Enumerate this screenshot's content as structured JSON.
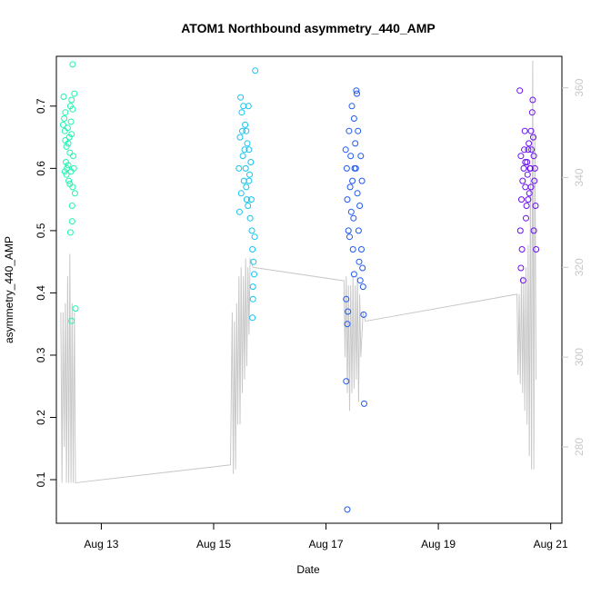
{
  "chart_data": {
    "type": "scatter",
    "title": "ATOM1 Northbound asymmetry_440_AMP",
    "xlabel": "Date",
    "ylabel": "asymmetry_440_AMP",
    "x_range_days": [
      12.2,
      21.2
    ],
    "y_range": [
      0.03,
      0.78
    ],
    "y2_range": [
      263,
      367
    ],
    "x_ticks": [
      {
        "value": 13,
        "label": "Aug 13"
      },
      {
        "value": 15,
        "label": "Aug 15"
      },
      {
        "value": 17,
        "label": "Aug 17"
      },
      {
        "value": 19,
        "label": "Aug 19"
      },
      {
        "value": 21,
        "label": "Aug 21"
      }
    ],
    "y_ticks": [
      {
        "value": 0.1,
        "label": "0.1"
      },
      {
        "value": 0.2,
        "label": "0.2"
      },
      {
        "value": 0.3,
        "label": "0.3"
      },
      {
        "value": 0.4,
        "label": "0.4"
      },
      {
        "value": 0.5,
        "label": "0.5"
      },
      {
        "value": 0.6,
        "label": "0.6"
      },
      {
        "value": 0.7,
        "label": "0.7"
      }
    ],
    "y2_ticks": [
      {
        "value": 280,
        "label": "280"
      },
      {
        "value": 300,
        "label": "300"
      },
      {
        "value": 320,
        "label": "320"
      },
      {
        "value": 340,
        "label": "340"
      },
      {
        "value": 360,
        "label": "360"
      }
    ],
    "grid": false,
    "points": [
      {
        "x": 12.32,
        "y": 0.67,
        "color": "#1ef5b0"
      },
      {
        "x": 12.33,
        "y": 0.715,
        "color": "#1ef5b0"
      },
      {
        "x": 12.34,
        "y": 0.68,
        "color": "#1ef5b0"
      },
      {
        "x": 12.35,
        "y": 0.66,
        "color": "#1ef5b0"
      },
      {
        "x": 12.36,
        "y": 0.645,
        "color": "#1ef5b0"
      },
      {
        "x": 12.37,
        "y": 0.61,
        "color": "#1ef5b0"
      },
      {
        "x": 12.38,
        "y": 0.59,
        "color": "#1ef5b0"
      },
      {
        "x": 12.39,
        "y": 0.6,
        "color": "#1ef5b0"
      },
      {
        "x": 12.4,
        "y": 0.665,
        "color": "#1ef5b0"
      },
      {
        "x": 12.41,
        "y": 0.605,
        "color": "#1ef5b0"
      },
      {
        "x": 12.42,
        "y": 0.58,
        "color": "#1ef5b0"
      },
      {
        "x": 12.43,
        "y": 0.65,
        "color": "#1ef5b0"
      },
      {
        "x": 12.44,
        "y": 0.625,
        "color": "#1ef5b0"
      },
      {
        "x": 12.45,
        "y": 0.7,
        "color": "#1ef5b0"
      },
      {
        "x": 12.46,
        "y": 0.675,
        "color": "#1ef5b0"
      },
      {
        "x": 12.47,
        "y": 0.71,
        "color": "#1ef5b0"
      },
      {
        "x": 12.48,
        "y": 0.54,
        "color": "#1ef5b0"
      },
      {
        "x": 12.49,
        "y": 0.57,
        "color": "#1ef5b0"
      },
      {
        "x": 12.5,
        "y": 0.62,
        "color": "#1ef5b0"
      },
      {
        "x": 12.51,
        "y": 0.6,
        "color": "#1ef5b0"
      },
      {
        "x": 12.36,
        "y": 0.69,
        "color": "#1ef5b0"
      },
      {
        "x": 12.38,
        "y": 0.635,
        "color": "#1ef5b0"
      },
      {
        "x": 12.44,
        "y": 0.575,
        "color": "#1ef5b0"
      },
      {
        "x": 12.47,
        "y": 0.655,
        "color": "#1ef5b0"
      },
      {
        "x": 12.49,
        "y": 0.695,
        "color": "#1ef5b0"
      },
      {
        "x": 12.46,
        "y": 0.595,
        "color": "#1ef5b0"
      },
      {
        "x": 12.41,
        "y": 0.64,
        "color": "#1ef5b0"
      },
      {
        "x": 12.35,
        "y": 0.595,
        "color": "#1ef5b0"
      },
      {
        "x": 12.52,
        "y": 0.72,
        "color": "#1ef5b0"
      },
      {
        "x": 12.53,
        "y": 0.56,
        "color": "#1ef5b0"
      },
      {
        "x": 12.48,
        "y": 0.515,
        "color": "#1ef5b0"
      },
      {
        "x": 12.45,
        "y": 0.497,
        "color": "#1ef5b0"
      },
      {
        "x": 12.49,
        "y": 0.767,
        "color": "#1ef5b0"
      },
      {
        "x": 12.47,
        "y": 0.355,
        "color": "#1ef5b0"
      },
      {
        "x": 12.54,
        "y": 0.375,
        "color": "#1ef5b0"
      },
      {
        "x": 15.45,
        "y": 0.6,
        "color": "#14c4ef"
      },
      {
        "x": 15.47,
        "y": 0.65,
        "color": "#14c4ef"
      },
      {
        "x": 15.49,
        "y": 0.56,
        "color": "#14c4ef"
      },
      {
        "x": 15.5,
        "y": 0.69,
        "color": "#14c4ef"
      },
      {
        "x": 15.52,
        "y": 0.62,
        "color": "#14c4ef"
      },
      {
        "x": 15.54,
        "y": 0.58,
        "color": "#14c4ef"
      },
      {
        "x": 15.56,
        "y": 0.67,
        "color": "#14c4ef"
      },
      {
        "x": 15.57,
        "y": 0.6,
        "color": "#14c4ef"
      },
      {
        "x": 15.59,
        "y": 0.55,
        "color": "#14c4ef"
      },
      {
        "x": 15.6,
        "y": 0.64,
        "color": "#14c4ef"
      },
      {
        "x": 15.62,
        "y": 0.7,
        "color": "#14c4ef"
      },
      {
        "x": 15.63,
        "y": 0.58,
        "color": "#14c4ef"
      },
      {
        "x": 15.65,
        "y": 0.52,
        "color": "#14c4ef"
      },
      {
        "x": 15.66,
        "y": 0.61,
        "color": "#14c4ef"
      },
      {
        "x": 15.68,
        "y": 0.5,
        "color": "#14c4ef"
      },
      {
        "x": 15.69,
        "y": 0.47,
        "color": "#14c4ef"
      },
      {
        "x": 15.71,
        "y": 0.45,
        "color": "#14c4ef"
      },
      {
        "x": 15.72,
        "y": 0.43,
        "color": "#14c4ef"
      },
      {
        "x": 15.7,
        "y": 0.39,
        "color": "#14c4ef"
      },
      {
        "x": 15.69,
        "y": 0.36,
        "color": "#14c4ef"
      },
      {
        "x": 15.74,
        "y": 0.757,
        "color": "#14c4ef"
      },
      {
        "x": 15.48,
        "y": 0.714,
        "color": "#14c4ef"
      },
      {
        "x": 15.46,
        "y": 0.53,
        "color": "#14c4ef"
      },
      {
        "x": 15.51,
        "y": 0.66,
        "color": "#14c4ef"
      },
      {
        "x": 15.55,
        "y": 0.63,
        "color": "#14c4ef"
      },
      {
        "x": 15.58,
        "y": 0.57,
        "color": "#14c4ef"
      },
      {
        "x": 15.61,
        "y": 0.54,
        "color": "#14c4ef"
      },
      {
        "x": 15.64,
        "y": 0.59,
        "color": "#14c4ef"
      },
      {
        "x": 15.67,
        "y": 0.55,
        "color": "#14c4ef"
      },
      {
        "x": 15.73,
        "y": 0.49,
        "color": "#14c4ef"
      },
      {
        "x": 15.53,
        "y": 0.7,
        "color": "#14c4ef"
      },
      {
        "x": 15.58,
        "y": 0.66,
        "color": "#14c4ef"
      },
      {
        "x": 15.63,
        "y": 0.63,
        "color": "#14c4ef"
      },
      {
        "x": 15.7,
        "y": 0.41,
        "color": "#14c4ef"
      },
      {
        "x": 17.35,
        "y": 0.63,
        "color": "#2058f0"
      },
      {
        "x": 17.37,
        "y": 0.6,
        "color": "#2058f0"
      },
      {
        "x": 17.38,
        "y": 0.55,
        "color": "#2058f0"
      },
      {
        "x": 17.4,
        "y": 0.5,
        "color": "#2058f0"
      },
      {
        "x": 17.41,
        "y": 0.66,
        "color": "#2058f0"
      },
      {
        "x": 17.43,
        "y": 0.57,
        "color": "#2058f0"
      },
      {
        "x": 17.44,
        "y": 0.62,
        "color": "#2058f0"
      },
      {
        "x": 17.46,
        "y": 0.7,
        "color": "#2058f0"
      },
      {
        "x": 17.47,
        "y": 0.58,
        "color": "#2058f0"
      },
      {
        "x": 17.49,
        "y": 0.52,
        "color": "#2058f0"
      },
      {
        "x": 17.5,
        "y": 0.68,
        "color": "#2058f0"
      },
      {
        "x": 17.52,
        "y": 0.64,
        "color": "#2058f0"
      },
      {
        "x": 17.53,
        "y": 0.6,
        "color": "#2058f0"
      },
      {
        "x": 17.55,
        "y": 0.72,
        "color": "#2058f0"
      },
      {
        "x": 17.56,
        "y": 0.56,
        "color": "#2058f0"
      },
      {
        "x": 17.58,
        "y": 0.5,
        "color": "#2058f0"
      },
      {
        "x": 17.59,
        "y": 0.45,
        "color": "#2058f0"
      },
      {
        "x": 17.61,
        "y": 0.42,
        "color": "#2058f0"
      },
      {
        "x": 17.62,
        "y": 0.62,
        "color": "#2058f0"
      },
      {
        "x": 17.64,
        "y": 0.58,
        "color": "#2058f0"
      },
      {
        "x": 17.36,
        "y": 0.39,
        "color": "#2058f0"
      },
      {
        "x": 17.38,
        "y": 0.35,
        "color": "#2058f0"
      },
      {
        "x": 17.39,
        "y": 0.37,
        "color": "#2058f0"
      },
      {
        "x": 17.36,
        "y": 0.258,
        "color": "#2058f0"
      },
      {
        "x": 17.38,
        "y": 0.052,
        "color": "#2058f0"
      },
      {
        "x": 17.68,
        "y": 0.222,
        "color": "#2058f0"
      },
      {
        "x": 17.67,
        "y": 0.365,
        "color": "#2058f0"
      },
      {
        "x": 17.66,
        "y": 0.41,
        "color": "#2058f0"
      },
      {
        "x": 17.54,
        "y": 0.725,
        "color": "#2058f0"
      },
      {
        "x": 17.42,
        "y": 0.49,
        "color": "#2058f0"
      },
      {
        "x": 17.45,
        "y": 0.53,
        "color": "#2058f0"
      },
      {
        "x": 17.48,
        "y": 0.47,
        "color": "#2058f0"
      },
      {
        "x": 17.51,
        "y": 0.6,
        "color": "#2058f0"
      },
      {
        "x": 17.57,
        "y": 0.66,
        "color": "#2058f0"
      },
      {
        "x": 17.6,
        "y": 0.54,
        "color": "#2058f0"
      },
      {
        "x": 17.63,
        "y": 0.47,
        "color": "#2058f0"
      },
      {
        "x": 17.65,
        "y": 0.44,
        "color": "#2058f0"
      },
      {
        "x": 17.5,
        "y": 0.43,
        "color": "#2058f0"
      },
      {
        "x": 20.45,
        "y": 0.725,
        "color": "#6a10f0"
      },
      {
        "x": 20.47,
        "y": 0.62,
        "color": "#6a10f0"
      },
      {
        "x": 20.48,
        "y": 0.55,
        "color": "#6a10f0"
      },
      {
        "x": 20.5,
        "y": 0.58,
        "color": "#6a10f0"
      },
      {
        "x": 20.52,
        "y": 0.6,
        "color": "#6a10f0"
      },
      {
        "x": 20.53,
        "y": 0.63,
        "color": "#6a10f0"
      },
      {
        "x": 20.55,
        "y": 0.57,
        "color": "#6a10f0"
      },
      {
        "x": 20.56,
        "y": 0.52,
        "color": "#6a10f0"
      },
      {
        "x": 20.58,
        "y": 0.61,
        "color": "#6a10f0"
      },
      {
        "x": 20.59,
        "y": 0.59,
        "color": "#6a10f0"
      },
      {
        "x": 20.61,
        "y": 0.64,
        "color": "#6a10f0"
      },
      {
        "x": 20.62,
        "y": 0.56,
        "color": "#6a10f0"
      },
      {
        "x": 20.64,
        "y": 0.6,
        "color": "#6a10f0"
      },
      {
        "x": 20.65,
        "y": 0.66,
        "color": "#6a10f0"
      },
      {
        "x": 20.67,
        "y": 0.69,
        "color": "#6a10f0"
      },
      {
        "x": 20.68,
        "y": 0.71,
        "color": "#6a10f0"
      },
      {
        "x": 20.7,
        "y": 0.62,
        "color": "#6a10f0"
      },
      {
        "x": 20.71,
        "y": 0.58,
        "color": "#6a10f0"
      },
      {
        "x": 20.46,
        "y": 0.5,
        "color": "#6a10f0"
      },
      {
        "x": 20.49,
        "y": 0.47,
        "color": "#6a10f0"
      },
      {
        "x": 20.47,
        "y": 0.44,
        "color": "#6a10f0"
      },
      {
        "x": 20.51,
        "y": 0.42,
        "color": "#6a10f0"
      },
      {
        "x": 20.54,
        "y": 0.66,
        "color": "#6a10f0"
      },
      {
        "x": 20.57,
        "y": 0.54,
        "color": "#6a10f0"
      },
      {
        "x": 20.6,
        "y": 0.55,
        "color": "#6a10f0"
      },
      {
        "x": 20.63,
        "y": 0.6,
        "color": "#6a10f0"
      },
      {
        "x": 20.66,
        "y": 0.63,
        "color": "#6a10f0"
      },
      {
        "x": 20.69,
        "y": 0.65,
        "color": "#6a10f0"
      },
      {
        "x": 20.72,
        "y": 0.6,
        "color": "#6a10f0"
      },
      {
        "x": 20.73,
        "y": 0.54,
        "color": "#6a10f0"
      },
      {
        "x": 20.74,
        "y": 0.47,
        "color": "#6a10f0"
      },
      {
        "x": 20.7,
        "y": 0.5,
        "color": "#6a10f0"
      },
      {
        "x": 20.55,
        "y": 0.61,
        "color": "#6a10f0"
      },
      {
        "x": 20.6,
        "y": 0.63,
        "color": "#6a10f0"
      },
      {
        "x": 20.65,
        "y": 0.57,
        "color": "#6a10f0"
      }
    ],
    "gray_series": {
      "color": "#c8c8c8",
      "points": [
        [
          12.28,
          310
        ],
        [
          12.3,
          272
        ],
        [
          12.32,
          310
        ],
        [
          12.34,
          280
        ],
        [
          12.36,
          312
        ],
        [
          12.38,
          272
        ],
        [
          12.4,
          318
        ],
        [
          12.42,
          272
        ],
        [
          12.44,
          323
        ],
        [
          12.46,
          272
        ],
        [
          12.48,
          312
        ],
        [
          12.5,
          272
        ],
        [
          12.52,
          310
        ],
        [
          12.54,
          272
        ],
        [
          15.3,
          276
        ],
        [
          15.33,
          310
        ],
        [
          15.35,
          274
        ],
        [
          15.37,
          308
        ],
        [
          15.39,
          275
        ],
        [
          15.41,
          312
        ],
        [
          15.43,
          285
        ],
        [
          15.45,
          318
        ],
        [
          15.47,
          285
        ],
        [
          15.49,
          320
        ],
        [
          15.51,
          292
        ],
        [
          15.53,
          318
        ],
        [
          15.55,
          295
        ],
        [
          15.57,
          322
        ],
        [
          15.59,
          298
        ],
        [
          15.61,
          320
        ],
        [
          15.63,
          305
        ],
        [
          15.65,
          322
        ],
        [
          15.7,
          320
        ],
        [
          17.32,
          317
        ],
        [
          17.34,
          300
        ],
        [
          17.36,
          318
        ],
        [
          17.38,
          292
        ],
        [
          17.4,
          316
        ],
        [
          17.42,
          288
        ],
        [
          17.44,
          316
        ],
        [
          17.46,
          292
        ],
        [
          17.48,
          318
        ],
        [
          17.5,
          293
        ],
        [
          17.52,
          316
        ],
        [
          17.54,
          295
        ],
        [
          17.56,
          318
        ],
        [
          17.58,
          290
        ],
        [
          17.6,
          314
        ],
        [
          17.62,
          300
        ],
        [
          17.66,
          310
        ],
        [
          17.7,
          308
        ],
        [
          20.4,
          314
        ],
        [
          20.42,
          296
        ],
        [
          20.44,
          314
        ],
        [
          20.46,
          294
        ],
        [
          20.48,
          318
        ],
        [
          20.5,
          292
        ],
        [
          20.52,
          318
        ],
        [
          20.54,
          288
        ],
        [
          20.56,
          320
        ],
        [
          20.58,
          285
        ],
        [
          20.6,
          325
        ],
        [
          20.62,
          278
        ],
        [
          20.64,
          340
        ],
        [
          20.66,
          275
        ],
        [
          20.68,
          366
        ],
        [
          20.7,
          275
        ],
        [
          20.72,
          350
        ],
        [
          20.74,
          295
        ]
      ]
    }
  }
}
